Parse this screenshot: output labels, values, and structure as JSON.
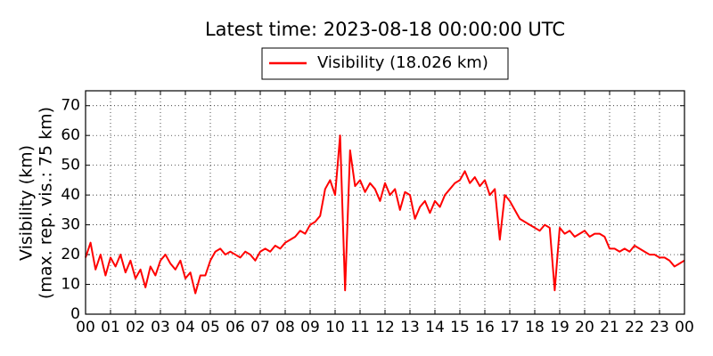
{
  "chart_data": {
    "type": "line",
    "title": "Latest time: 2023-08-18 00:00:00 UTC",
    "ylabel": [
      "Visibility (km)",
      "(max. rep. vis.: 75 km)"
    ],
    "x": [
      0,
      0.2,
      0.4,
      0.6,
      0.8,
      1,
      1.2,
      1.4,
      1.6,
      1.8,
      2,
      2.2,
      2.4,
      2.6,
      2.8,
      3,
      3.2,
      3.4,
      3.6,
      3.8,
      4,
      4.2,
      4.4,
      4.6,
      4.8,
      5,
      5.2,
      5.4,
      5.6,
      5.8,
      6,
      6.2,
      6.4,
      6.6,
      6.8,
      7,
      7.2,
      7.4,
      7.6,
      7.8,
      8,
      8.2,
      8.4,
      8.6,
      8.8,
      9,
      9.2,
      9.4,
      9.6,
      9.8,
      10,
      10.2,
      10.4,
      10.6,
      10.8,
      11,
      11.2,
      11.4,
      11.6,
      11.8,
      12,
      12.2,
      12.4,
      12.6,
      12.8,
      13,
      13.2,
      13.4,
      13.6,
      13.8,
      14,
      14.2,
      14.4,
      14.6,
      14.8,
      15,
      15.2,
      15.4,
      15.6,
      15.8,
      16,
      16.2,
      16.4,
      16.6,
      16.8,
      17,
      17.2,
      17.4,
      17.6,
      17.8,
      18,
      18.2,
      18.4,
      18.6,
      18.8,
      19,
      19.2,
      19.4,
      19.6,
      19.8,
      20,
      20.2,
      20.4,
      20.6,
      20.8,
      21,
      21.2,
      21.4,
      21.6,
      21.8,
      22,
      22.2,
      22.4,
      22.6,
      22.8,
      23,
      23.2,
      23.4,
      23.6,
      23.8,
      24
    ],
    "series": [
      {
        "name": "Visibility (18.026 km)",
        "color": "#ff0000",
        "values": [
          19,
          24,
          15,
          20,
          13,
          19,
          16,
          20,
          14,
          18,
          12,
          15,
          9,
          16,
          13,
          18,
          20,
          17,
          15,
          18,
          12,
          14,
          7,
          13,
          13,
          18,
          21,
          22,
          20,
          21,
          20,
          19,
          21,
          20,
          18,
          21,
          22,
          21,
          23,
          22,
          24,
          25,
          26,
          28,
          27,
          30,
          31,
          33,
          42,
          45,
          40,
          60,
          8,
          55,
          43,
          45,
          41,
          44,
          42,
          38,
          44,
          40,
          42,
          35,
          41,
          40,
          32,
          36,
          38,
          34,
          38,
          36,
          40,
          42,
          44,
          45,
          48,
          44,
          46,
          43,
          45,
          40,
          42,
          25,
          40,
          38,
          35,
          32,
          31,
          30,
          29,
          28,
          30,
          29,
          8,
          29,
          27,
          28,
          26,
          27,
          28,
          26,
          27,
          27,
          26,
          22,
          22,
          21,
          22,
          21,
          23,
          22,
          21,
          20,
          20,
          19,
          19,
          18,
          16,
          17,
          18.026
        ]
      }
    ],
    "xlim": [
      0,
      24
    ],
    "xticks": [
      {
        "value": 0,
        "label": "00"
      },
      {
        "value": 1,
        "label": "01"
      },
      {
        "value": 2,
        "label": "02"
      },
      {
        "value": 3,
        "label": "03"
      },
      {
        "value": 4,
        "label": "04"
      },
      {
        "value": 5,
        "label": "05"
      },
      {
        "value": 6,
        "label": "06"
      },
      {
        "value": 7,
        "label": "07"
      },
      {
        "value": 8,
        "label": "08"
      },
      {
        "value": 9,
        "label": "09"
      },
      {
        "value": 10,
        "label": "10"
      },
      {
        "value": 11,
        "label": "11"
      },
      {
        "value": 12,
        "label": "12"
      },
      {
        "value": 13,
        "label": "13"
      },
      {
        "value": 14,
        "label": "14"
      },
      {
        "value": 15,
        "label": "15"
      },
      {
        "value": 16,
        "label": "16"
      },
      {
        "value": 17,
        "label": "17"
      },
      {
        "value": 18,
        "label": "18"
      },
      {
        "value": 19,
        "label": "19"
      },
      {
        "value": 20,
        "label": "20"
      },
      {
        "value": 21,
        "label": "21"
      },
      {
        "value": 22,
        "label": "22"
      },
      {
        "value": 23,
        "label": "23"
      },
      {
        "value": 24,
        "label": "00"
      }
    ],
    "ylim": [
      0,
      75
    ],
    "yticks": [
      0,
      10,
      20,
      30,
      40,
      50,
      60,
      70
    ],
    "grid": true
  }
}
